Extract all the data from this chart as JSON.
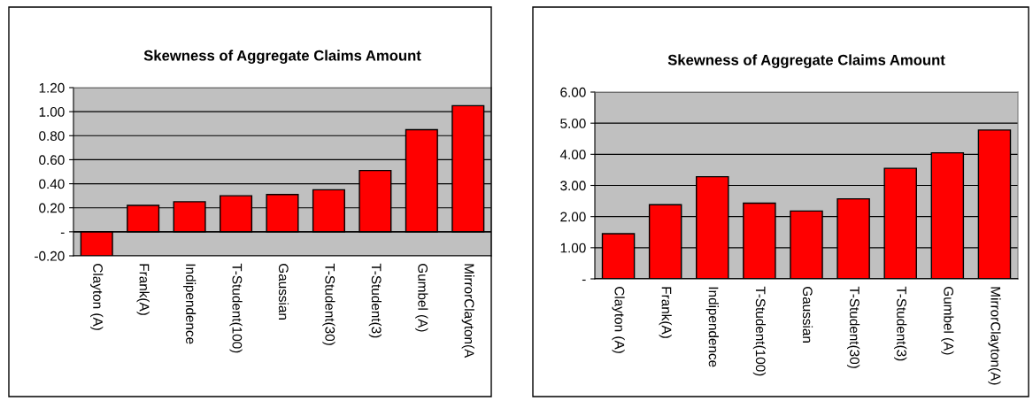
{
  "chart_data": [
    {
      "type": "bar",
      "title": "Skewness of Aggregate Claims Amount",
      "categories": [
        "Clayton (A)",
        "Frank(A)",
        "Indipendence",
        "T-Student(100)",
        "Gaussian",
        "T-Student(30)",
        "T-Student(3)",
        "Gumbel (A)",
        "MirrorClayton(A"
      ],
      "values": [
        -0.2,
        0.22,
        0.25,
        0.3,
        0.31,
        0.35,
        0.51,
        0.85,
        1.05
      ],
      "color": "#ff0000",
      "ylim": [
        -0.2,
        1.2
      ],
      "yticks": [
        {
          "value": -0.2,
          "label": "-0.20"
        },
        {
          "value": 0,
          "label": "-"
        },
        {
          "value": 0.2,
          "label": "0.20"
        },
        {
          "value": 0.4,
          "label": "0.40"
        },
        {
          "value": 0.6,
          "label": "0.60"
        },
        {
          "value": 0.8,
          "label": "0.80"
        },
        {
          "value": 1.0,
          "label": "1.00"
        },
        {
          "value": 1.2,
          "label": "1.20"
        }
      ],
      "grid": "y"
    },
    {
      "type": "bar",
      "title": "Skewness of Aggregate Claims Amount",
      "categories": [
        "Clayton (A)",
        "Frank(A)",
        "Indipendence",
        "T-Student(100)",
        "Gaussian",
        "T-Student(30)",
        "T-Student(3)",
        "Gumbel (A)",
        "MirrorClayton(A)"
      ],
      "values": [
        1.45,
        2.38,
        3.28,
        2.43,
        2.18,
        2.57,
        3.55,
        4.05,
        4.78
      ],
      "color": "#ff0000",
      "ylim": [
        0,
        6
      ],
      "yticks": [
        {
          "value": 0,
          "label": "-"
        },
        {
          "value": 1,
          "label": "1.00"
        },
        {
          "value": 2,
          "label": "2.00"
        },
        {
          "value": 3,
          "label": "3.00"
        },
        {
          "value": 4,
          "label": "4.00"
        },
        {
          "value": 5,
          "label": "5.00"
        },
        {
          "value": 6,
          "label": "6.00"
        }
      ],
      "grid": "y"
    }
  ]
}
